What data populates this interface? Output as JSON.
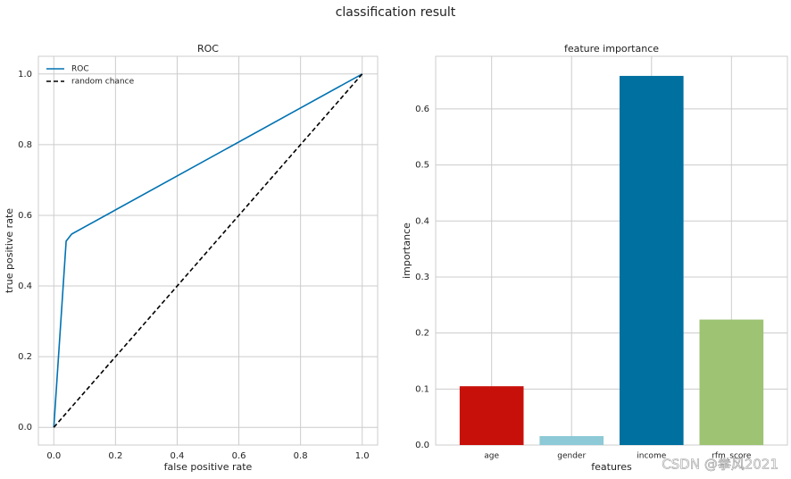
{
  "title": "classification result",
  "watermark": "CSDN @拳风2021",
  "chart_data": [
    {
      "type": "line",
      "title": "ROC",
      "x_label": "false positive rate",
      "y_label": "true positive rate",
      "series": [
        {
          "name": "ROC",
          "color": "#0072B2",
          "dash": "solid",
          "x": [
            0,
            0.04,
            0.058,
            1
          ],
          "values": [
            0,
            0.527,
            0.547,
            1
          ]
        },
        {
          "name": "random chance",
          "color": "#000000",
          "dash": "dashed",
          "x": [
            0,
            1
          ],
          "values": [
            0,
            1
          ]
        }
      ],
      "xlim": [
        -0.05,
        1.05
      ],
      "ylim": [
        -0.05,
        1.05
      ],
      "xticks": [
        {
          "value": 0,
          "label": "0.0"
        },
        0.2,
        0.4,
        0.6,
        0.8,
        {
          "value": 1,
          "label": "1.0"
        }
      ],
      "yticks": [
        {
          "value": 0,
          "label": "0.0"
        },
        0.2,
        0.4,
        0.6,
        0.8,
        {
          "value": 1,
          "label": "1.0"
        }
      ],
      "grid": true,
      "legend": "upper left"
    },
    {
      "type": "bar",
      "title": "feature importance",
      "x_label": "features",
      "y_label": "importance",
      "categories": [
        "age",
        "gender",
        "income",
        "rfm_score"
      ],
      "values": [
        0.105,
        0.016,
        0.659,
        0.224
      ],
      "colors": [
        "#C8100B",
        "#8DC9D6",
        "#0070A0",
        "#9DC373"
      ],
      "ylim": [
        0,
        0.694
      ],
      "yticks": [
        {
          "value": 0,
          "label": "0.0"
        },
        0.1,
        0.2,
        0.3,
        0.4,
        0.5,
        0.6
      ],
      "grid": true
    }
  ]
}
